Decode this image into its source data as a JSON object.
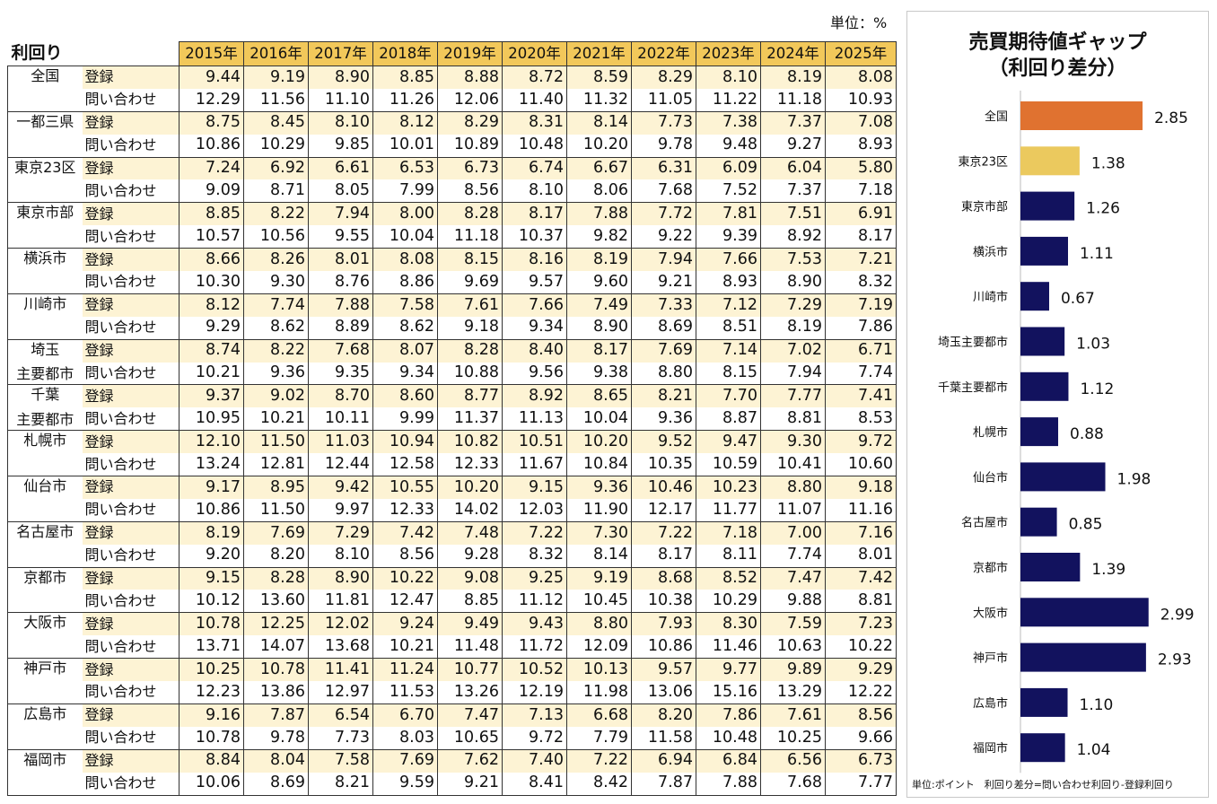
{
  "unit_label": "単位：%",
  "table": {
    "title": "利回り",
    "years": [
      "2015年",
      "2016年",
      "2017年",
      "2018年",
      "2019年",
      "2020年",
      "2021年",
      "2022年",
      "2023年",
      "2024年",
      "2025年"
    ],
    "row_labels": {
      "registration": "登録",
      "inquiry": "問い合わせ"
    },
    "regions": [
      {
        "name": "全国",
        "name_lines": [
          "全国"
        ],
        "registration": [
          "9.44",
          "9.19",
          "8.90",
          "8.85",
          "8.88",
          "8.72",
          "8.59",
          "8.29",
          "8.10",
          "8.19",
          "8.08"
        ],
        "inquiry": [
          "12.29",
          "11.56",
          "11.10",
          "11.26",
          "12.06",
          "11.40",
          "11.32",
          "11.05",
          "11.22",
          "11.18",
          "10.93"
        ]
      },
      {
        "name": "一都三県",
        "name_lines": [
          "一都三県"
        ],
        "registration": [
          "8.75",
          "8.45",
          "8.10",
          "8.12",
          "8.29",
          "8.31",
          "8.14",
          "7.73",
          "7.38",
          "7.37",
          "7.08"
        ],
        "inquiry": [
          "10.86",
          "10.29",
          "9.85",
          "10.01",
          "10.89",
          "10.48",
          "10.20",
          "9.78",
          "9.48",
          "9.27",
          "8.93"
        ]
      },
      {
        "name": "東京23区",
        "name_lines": [
          "東京23区"
        ],
        "registration": [
          "7.24",
          "6.92",
          "6.61",
          "6.53",
          "6.73",
          "6.74",
          "6.67",
          "6.31",
          "6.09",
          "6.04",
          "5.80"
        ],
        "inquiry": [
          "9.09",
          "8.71",
          "8.05",
          "7.99",
          "8.56",
          "8.10",
          "8.06",
          "7.68",
          "7.52",
          "7.37",
          "7.18"
        ]
      },
      {
        "name": "東京市部",
        "name_lines": [
          "東京市部"
        ],
        "registration": [
          "8.85",
          "8.22",
          "7.94",
          "8.00",
          "8.28",
          "8.17",
          "7.88",
          "7.72",
          "7.81",
          "7.51",
          "6.91"
        ],
        "inquiry": [
          "10.57",
          "10.56",
          "9.55",
          "10.04",
          "11.18",
          "10.37",
          "9.82",
          "9.22",
          "9.39",
          "8.92",
          "8.17"
        ]
      },
      {
        "name": "横浜市",
        "name_lines": [
          "横浜市"
        ],
        "registration": [
          "8.66",
          "8.26",
          "8.01",
          "8.08",
          "8.15",
          "8.16",
          "8.19",
          "7.94",
          "7.66",
          "7.53",
          "7.21"
        ],
        "inquiry": [
          "10.30",
          "9.30",
          "8.76",
          "8.86",
          "9.69",
          "9.57",
          "9.60",
          "9.21",
          "8.93",
          "8.90",
          "8.32"
        ]
      },
      {
        "name": "川崎市",
        "name_lines": [
          "川崎市"
        ],
        "registration": [
          "8.12",
          "7.74",
          "7.88",
          "7.58",
          "7.61",
          "7.66",
          "7.49",
          "7.33",
          "7.12",
          "7.29",
          "7.19"
        ],
        "inquiry": [
          "9.29",
          "8.62",
          "8.89",
          "8.62",
          "9.18",
          "9.34",
          "8.90",
          "8.69",
          "8.51",
          "8.19",
          "7.86"
        ]
      },
      {
        "name": "埼玉主要都市",
        "name_lines": [
          "埼玉",
          "主要都市"
        ],
        "registration": [
          "8.74",
          "8.22",
          "7.68",
          "8.07",
          "8.28",
          "8.40",
          "8.17",
          "7.69",
          "7.14",
          "7.02",
          "6.71"
        ],
        "inquiry": [
          "10.21",
          "9.36",
          "9.35",
          "9.34",
          "10.88",
          "9.56",
          "9.38",
          "8.80",
          "8.15",
          "7.94",
          "7.74"
        ]
      },
      {
        "name": "千葉主要都市",
        "name_lines": [
          "千葉",
          "主要都市"
        ],
        "registration": [
          "9.37",
          "9.02",
          "8.70",
          "8.60",
          "8.77",
          "8.92",
          "8.65",
          "8.21",
          "7.70",
          "7.77",
          "7.41"
        ],
        "inquiry": [
          "10.95",
          "10.21",
          "10.11",
          "9.99",
          "11.37",
          "11.13",
          "10.04",
          "9.36",
          "8.87",
          "8.81",
          "8.53"
        ]
      },
      {
        "name": "札幌市",
        "name_lines": [
          "札幌市"
        ],
        "registration": [
          "12.10",
          "11.50",
          "11.03",
          "10.94",
          "10.82",
          "10.51",
          "10.20",
          "9.52",
          "9.47",
          "9.30",
          "9.72"
        ],
        "inquiry": [
          "13.24",
          "12.81",
          "12.44",
          "12.58",
          "12.33",
          "11.67",
          "10.84",
          "10.35",
          "10.59",
          "10.41",
          "10.60"
        ]
      },
      {
        "name": "仙台市",
        "name_lines": [
          "仙台市"
        ],
        "registration": [
          "9.17",
          "8.95",
          "9.42",
          "10.55",
          "10.20",
          "9.15",
          "9.36",
          "10.46",
          "10.23",
          "8.80",
          "9.18"
        ],
        "inquiry": [
          "10.86",
          "11.50",
          "9.97",
          "12.33",
          "14.02",
          "12.03",
          "11.90",
          "12.17",
          "11.77",
          "11.07",
          "11.16"
        ]
      },
      {
        "name": "名古屋市",
        "name_lines": [
          "名古屋市"
        ],
        "registration": [
          "8.19",
          "7.69",
          "7.29",
          "7.42",
          "7.48",
          "7.22",
          "7.30",
          "7.22",
          "7.18",
          "7.00",
          "7.16"
        ],
        "inquiry": [
          "9.20",
          "8.20",
          "8.10",
          "8.56",
          "9.28",
          "8.32",
          "8.14",
          "8.17",
          "8.11",
          "7.74",
          "8.01"
        ]
      },
      {
        "name": "京都市",
        "name_lines": [
          "京都市"
        ],
        "registration": [
          "9.15",
          "8.28",
          "8.90",
          "10.22",
          "9.08",
          "9.25",
          "9.19",
          "8.68",
          "8.52",
          "7.47",
          "7.42"
        ],
        "inquiry": [
          "10.12",
          "13.60",
          "11.81",
          "12.47",
          "8.85",
          "11.12",
          "10.45",
          "10.38",
          "10.29",
          "9.88",
          "8.81"
        ]
      },
      {
        "name": "大阪市",
        "name_lines": [
          "大阪市"
        ],
        "registration": [
          "10.78",
          "12.25",
          "12.02",
          "9.24",
          "9.49",
          "9.43",
          "8.80",
          "7.93",
          "8.30",
          "7.59",
          "7.23"
        ],
        "inquiry": [
          "13.71",
          "14.07",
          "13.68",
          "10.21",
          "11.48",
          "11.72",
          "12.09",
          "10.86",
          "11.46",
          "10.63",
          "10.22"
        ]
      },
      {
        "name": "神戸市",
        "name_lines": [
          "神戸市"
        ],
        "registration": [
          "10.25",
          "10.78",
          "11.41",
          "11.24",
          "10.77",
          "10.52",
          "10.13",
          "9.57",
          "9.77",
          "9.89",
          "9.29"
        ],
        "inquiry": [
          "12.23",
          "13.86",
          "12.97",
          "11.53",
          "13.26",
          "12.19",
          "11.98",
          "13.06",
          "15.16",
          "13.29",
          "12.22"
        ]
      },
      {
        "name": "広島市",
        "name_lines": [
          "広島市"
        ],
        "registration": [
          "9.16",
          "7.87",
          "6.54",
          "6.70",
          "7.47",
          "7.13",
          "6.68",
          "8.20",
          "7.86",
          "7.61",
          "8.56"
        ],
        "inquiry": [
          "10.78",
          "9.78",
          "7.73",
          "8.03",
          "10.65",
          "9.72",
          "7.79",
          "11.58",
          "10.48",
          "10.25",
          "9.66"
        ]
      },
      {
        "name": "福岡市",
        "name_lines": [
          "福岡市"
        ],
        "registration": [
          "8.84",
          "8.04",
          "7.58",
          "7.69",
          "7.62",
          "7.40",
          "7.22",
          "6.94",
          "6.84",
          "6.56",
          "6.73"
        ],
        "inquiry": [
          "10.06",
          "8.69",
          "8.21",
          "9.59",
          "9.21",
          "8.41",
          "8.42",
          "7.87",
          "7.88",
          "7.68",
          "7.77"
        ]
      }
    ]
  },
  "chart_data": {
    "type": "bar",
    "orientation": "horizontal",
    "title": "売買期待値ギャップ",
    "subtitle": "（利回り差分）",
    "categories": [
      "全国",
      "東京23区",
      "東京市部",
      "横浜市",
      "川崎市",
      "埼玉主要都市",
      "千葉主要都市",
      "札幌市",
      "仙台市",
      "名古屋市",
      "京都市",
      "大阪市",
      "神戸市",
      "広島市",
      "福岡市"
    ],
    "values": [
      2.85,
      1.38,
      1.26,
      1.11,
      0.67,
      1.03,
      1.12,
      0.88,
      1.98,
      0.85,
      1.39,
      2.99,
      2.93,
      1.1,
      1.04
    ],
    "value_labels": [
      "2.85",
      "1.38",
      "1.26",
      "1.11",
      "0.67",
      "1.03",
      "1.12",
      "0.88",
      "1.98",
      "0.85",
      "1.39",
      "2.99",
      "2.93",
      "1.10",
      "1.04"
    ],
    "bar_colors": [
      "#e07230",
      "#ebc95e",
      "#12125e",
      "#12125e",
      "#12125e",
      "#12125e",
      "#12125e",
      "#12125e",
      "#12125e",
      "#12125e",
      "#12125e",
      "#12125e",
      "#12125e",
      "#12125e",
      "#12125e"
    ],
    "xlim": [
      0,
      3.1
    ],
    "grid": false,
    "note": "単位:ポイント　利回り差分=問い合わせ利回り-登録利回り"
  }
}
